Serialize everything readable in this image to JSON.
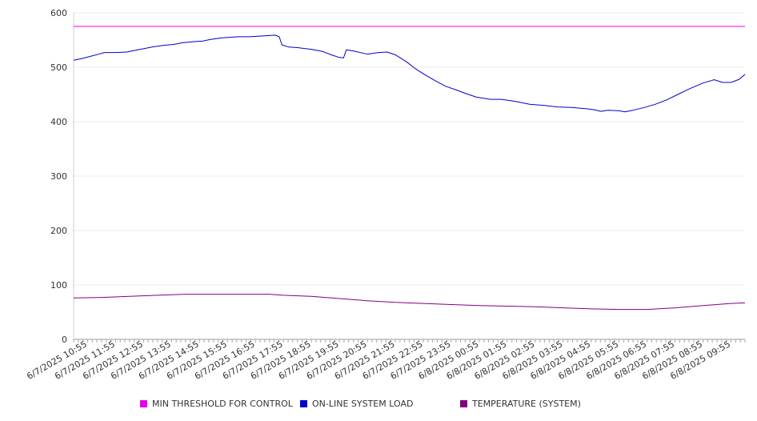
{
  "chart_data": {
    "type": "line",
    "title": "",
    "xlabel": "",
    "ylabel": "",
    "ylim": [
      0,
      600
    ],
    "y_ticks": [
      0,
      100,
      200,
      300,
      400,
      500,
      600
    ],
    "grid": true,
    "legend_position": "bottom",
    "x_tick_labels": [
      "6/7/2025 10:55",
      "6/7/2025 11:55",
      "6/7/2025 12:55",
      "6/7/2025 13:55",
      "6/7/2025 14:55",
      "6/7/2025 15:55",
      "6/7/2025 16:55",
      "6/7/2025 17:55",
      "6/7/2025 18:55",
      "6/7/2025 19:55",
      "6/7/2025 20:55",
      "6/7/2025 21:55",
      "6/7/2025 22:55",
      "6/7/2025 23:55",
      "6/8/2025 00:55",
      "6/8/2025 01:55",
      "6/8/2025 02:55",
      "6/8/2025 03:55",
      "6/8/2025 04:55",
      "6/8/2025 05:55",
      "6/8/2025 06:55",
      "6/8/2025 07:55",
      "6/8/2025 08:55",
      "6/8/2025 09:55"
    ],
    "x_range_hours": [
      0,
      24
    ],
    "series": [
      {
        "name": "MIN THRESHOLD FOR CONTROL",
        "color": "#e600e6",
        "points": [
          [
            0,
            575
          ],
          [
            24,
            575
          ]
        ]
      },
      {
        "name": "ON-LINE SYSTEM LOAD",
        "color": "#0000cc",
        "points": [
          [
            0,
            513
          ],
          [
            0.3,
            516
          ],
          [
            0.6,
            520
          ],
          [
            0.9,
            524
          ],
          [
            1.1,
            527
          ],
          [
            1.5,
            527
          ],
          [
            1.9,
            528
          ],
          [
            2.2,
            531
          ],
          [
            2.5,
            534
          ],
          [
            2.8,
            537
          ],
          [
            3.2,
            540
          ],
          [
            3.6,
            542
          ],
          [
            3.9,
            545
          ],
          [
            4.3,
            547
          ],
          [
            4.6,
            548
          ],
          [
            4.9,
            551
          ],
          [
            5.3,
            554
          ],
          [
            5.6,
            555
          ],
          [
            5.9,
            556
          ],
          [
            6.3,
            556
          ],
          [
            6.6,
            557
          ],
          [
            6.9,
            558
          ],
          [
            7.2,
            559
          ],
          [
            7.35,
            556
          ],
          [
            7.45,
            541
          ],
          [
            7.7,
            537
          ],
          [
            8.0,
            536
          ],
          [
            8.5,
            533
          ],
          [
            8.9,
            529
          ],
          [
            9.2,
            523
          ],
          [
            9.5,
            518
          ],
          [
            9.65,
            517
          ],
          [
            9.75,
            532
          ],
          [
            10.0,
            530
          ],
          [
            10.5,
            524
          ],
          [
            10.9,
            527
          ],
          [
            11.2,
            528
          ],
          [
            11.5,
            523
          ],
          [
            11.9,
            510
          ],
          [
            12.2,
            498
          ],
          [
            12.5,
            488
          ],
          [
            12.9,
            476
          ],
          [
            13.3,
            465
          ],
          [
            13.7,
            458
          ],
          [
            14.0,
            452
          ],
          [
            14.4,
            445
          ],
          [
            14.9,
            441
          ],
          [
            15.3,
            441
          ],
          [
            15.8,
            437
          ],
          [
            16.3,
            432
          ],
          [
            16.8,
            430
          ],
          [
            17.3,
            427
          ],
          [
            17.8,
            426
          ],
          [
            18.3,
            424
          ],
          [
            18.6,
            422
          ],
          [
            18.85,
            419
          ],
          [
            19.1,
            421
          ],
          [
            19.5,
            420
          ],
          [
            19.7,
            418
          ],
          [
            20.0,
            421
          ],
          [
            20.4,
            426
          ],
          [
            20.8,
            432
          ],
          [
            21.2,
            440
          ],
          [
            21.6,
            450
          ],
          [
            22.0,
            460
          ],
          [
            22.5,
            471
          ],
          [
            22.9,
            477
          ],
          [
            23.2,
            472
          ],
          [
            23.5,
            472
          ],
          [
            23.8,
            478
          ],
          [
            24,
            487
          ]
        ]
      },
      {
        "name": "TEMPERATURE (SYSTEM)",
        "color": "#800080",
        "points": [
          [
            0,
            76
          ],
          [
            1,
            77
          ],
          [
            2,
            79
          ],
          [
            3,
            81
          ],
          [
            4,
            83
          ],
          [
            5,
            83
          ],
          [
            6,
            83
          ],
          [
            7,
            83
          ],
          [
            7.5,
            81
          ],
          [
            8.5,
            79
          ],
          [
            9.5,
            75
          ],
          [
            10.5,
            71
          ],
          [
            11.5,
            68
          ],
          [
            12.5,
            66
          ],
          [
            13.5,
            64
          ],
          [
            14.5,
            62
          ],
          [
            15.5,
            61
          ],
          [
            16.5,
            60
          ],
          [
            17.5,
            58
          ],
          [
            18.5,
            56
          ],
          [
            19.5,
            55
          ],
          [
            20.5,
            55
          ],
          [
            21.5,
            58
          ],
          [
            22.5,
            62
          ],
          [
            23.5,
            66
          ],
          [
            24,
            67
          ]
        ]
      }
    ]
  }
}
